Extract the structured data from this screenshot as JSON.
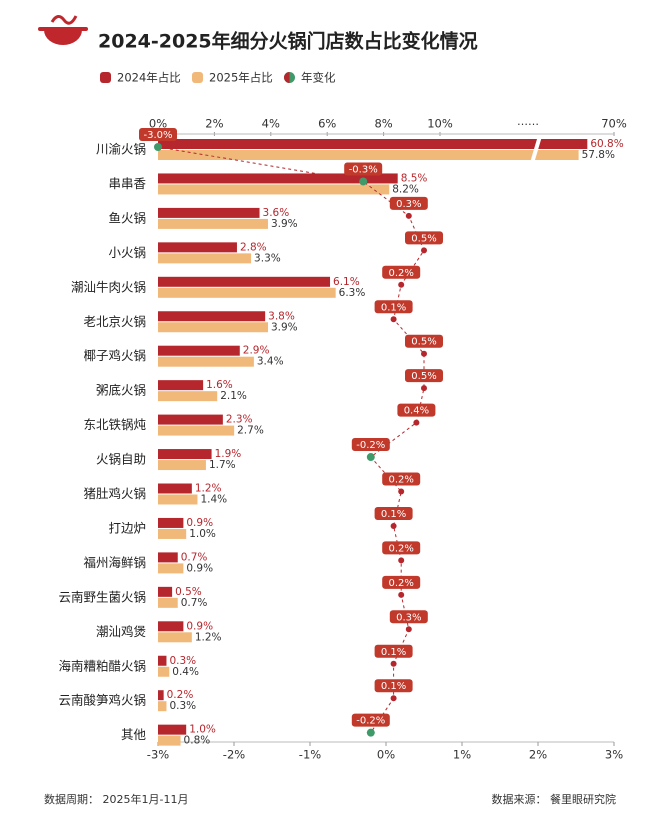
{
  "chart_data": {
    "type": "bar",
    "title": "2024-2025年细分火锅门店数占比变化情况",
    "categories": [
      "川渝火锅",
      "串串香",
      "鱼火锅",
      "小火锅",
      "潮汕牛肉火锅",
      "老北京火锅",
      "椰子鸡火锅",
      "粥底火锅",
      "东北铁锅炖",
      "火锅自助",
      "猪肚鸡火锅",
      "打边炉",
      "福州海鲜锅",
      "云南野生菌火锅",
      "潮汕鸡煲",
      "海南糟粕醋火锅",
      "云南酸笋鸡火锅",
      "其他"
    ],
    "series": [
      {
        "name": "2024年占比",
        "color": "#b5272d",
        "values": [
          60.8,
          8.5,
          3.6,
          2.8,
          6.1,
          3.8,
          2.9,
          1.6,
          2.3,
          1.9,
          1.2,
          0.9,
          0.7,
          0.5,
          0.9,
          0.3,
          0.2,
          1.0
        ],
        "value_labels": [
          "60.8%",
          "8.5%",
          "3.6%",
          "2.8%",
          "6.1%",
          "3.8%",
          "2.9%",
          "1.6%",
          "2.3%",
          "1.9%",
          "1.2%",
          "0.9%",
          "0.7%",
          "0.5%",
          "0.9%",
          "0.3%",
          "0.2%",
          "1.0%"
        ]
      },
      {
        "name": "2025年占比",
        "color": "#f0b97a",
        "values": [
          57.8,
          8.2,
          3.9,
          3.3,
          6.3,
          3.9,
          3.4,
          2.1,
          2.7,
          1.7,
          1.4,
          1.0,
          0.9,
          0.7,
          1.2,
          0.4,
          0.3,
          0.8
        ],
        "value_labels": [
          "57.8%",
          "8.2%",
          "3.9%",
          "3.3%",
          "6.3%",
          "3.9%",
          "3.4%",
          "2.1%",
          "2.7%",
          "1.7%",
          "1.4%",
          "1.0%",
          "0.9%",
          "0.7%",
          "1.2%",
          "0.4%",
          "0.3%",
          "0.8%"
        ]
      },
      {
        "name": "年变化",
        "color": "#3f9a6a",
        "axis": "x2",
        "values": [
          -3.0,
          -0.3,
          0.3,
          0.5,
          0.2,
          0.1,
          0.5,
          0.5,
          0.4,
          -0.2,
          0.2,
          0.1,
          0.2,
          0.2,
          0.3,
          0.1,
          0.1,
          -0.2
        ],
        "value_labels": [
          "-3.0%",
          "-0.3%",
          "0.3%",
          "0.5%",
          "0.2%",
          "0.1%",
          "0.5%",
          "0.5%",
          "0.4%",
          "-0.2%",
          "0.2%",
          "0.1%",
          "0.2%",
          "0.2%",
          "0.3%",
          "0.1%",
          "0.1%",
          "-0.2%"
        ]
      }
    ],
    "xlim": [
      0,
      70
    ],
    "xticks": [
      {
        "value": 0,
        "label": "0%"
      },
      {
        "value": 2,
        "label": "2%"
      },
      {
        "value": 4,
        "label": "4%"
      },
      {
        "value": 6,
        "label": "6%"
      },
      {
        "value": 8,
        "label": "8%"
      },
      {
        "value": 10,
        "label": "10%"
      },
      {
        "value": 70,
        "label": "70%"
      }
    ],
    "axis_break_label": "……",
    "x2lim": [
      -3,
      3
    ],
    "x2ticks": [
      {
        "value": -3,
        "label": "-3%"
      },
      {
        "value": -2,
        "label": "-2%"
      },
      {
        "value": -1,
        "label": "-1%"
      },
      {
        "value": 0,
        "label": "0%"
      },
      {
        "value": 1,
        "label": "1%"
      },
      {
        "value": 2,
        "label": "2%"
      },
      {
        "value": 3,
        "label": "3%"
      }
    ],
    "footer_left": "数据周期： 2025年1月-11月",
    "footer_right": "数据来源： 餐里眼研究院"
  }
}
